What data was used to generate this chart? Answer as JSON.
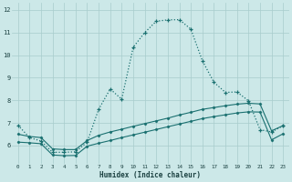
{
  "xlabel": "Humidex (Indice chaleur)",
  "bg_color": "#cce8e8",
  "grid_color": "#a8cccc",
  "line_color": "#1a7070",
  "xlim": [
    -0.5,
    23.5
  ],
  "ylim": [
    5.2,
    12.3
  ],
  "xticks": [
    0,
    1,
    2,
    3,
    4,
    5,
    6,
    7,
    8,
    9,
    10,
    11,
    12,
    13,
    14,
    15,
    16,
    17,
    18,
    19,
    20,
    21,
    22,
    23
  ],
  "yticks": [
    6,
    7,
    8,
    9,
    10,
    11,
    12
  ],
  "curve1_x": [
    0,
    1,
    2,
    3,
    4,
    5,
    6,
    7,
    8,
    9,
    10,
    11,
    12,
    13,
    14,
    15,
    16,
    17,
    18,
    19,
    20,
    21,
    22,
    23
  ],
  "curve1_y": [
    6.9,
    6.35,
    6.2,
    5.7,
    5.7,
    5.72,
    6.15,
    7.6,
    8.5,
    8.05,
    10.35,
    11.0,
    11.5,
    11.56,
    11.57,
    11.15,
    9.75,
    8.8,
    8.35,
    8.37,
    7.98,
    6.7,
    6.6,
    6.87
  ],
  "curve2_x": [
    0,
    1,
    2,
    3,
    4,
    5,
    6,
    7,
    8,
    9,
    10,
    11,
    12,
    13,
    14,
    15,
    16,
    17,
    18,
    19,
    20,
    21,
    22,
    23
  ],
  "curve2_y": [
    6.5,
    6.4,
    6.35,
    5.85,
    5.82,
    5.82,
    6.22,
    6.45,
    6.6,
    6.72,
    6.85,
    6.97,
    7.09,
    7.21,
    7.35,
    7.47,
    7.6,
    7.68,
    7.76,
    7.83,
    7.87,
    7.84,
    6.65,
    6.88
  ],
  "curve3_x": [
    0,
    1,
    2,
    3,
    4,
    5,
    6,
    7,
    8,
    9,
    10,
    11,
    12,
    13,
    14,
    15,
    16,
    17,
    18,
    19,
    20,
    21,
    22,
    23
  ],
  "curve3_y": [
    6.15,
    6.12,
    6.08,
    5.58,
    5.55,
    5.56,
    5.97,
    6.1,
    6.22,
    6.35,
    6.47,
    6.59,
    6.71,
    6.83,
    6.95,
    7.07,
    7.19,
    7.28,
    7.36,
    7.44,
    7.49,
    7.48,
    6.25,
    6.52
  ]
}
